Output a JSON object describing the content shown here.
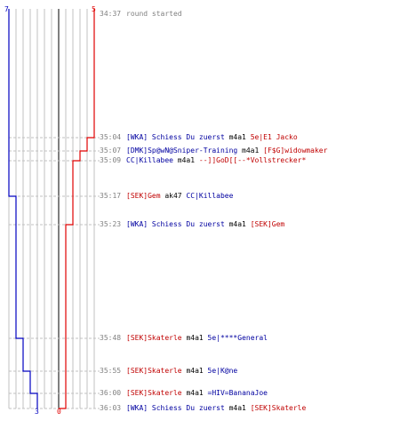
{
  "colors": {
    "blue": "#0000c0",
    "red": "#e00000",
    "grid": "#c0c0c0",
    "axis": "#808080"
  },
  "scores": {
    "blue_top": "7",
    "red_top": "5",
    "blue_bottom": "3",
    "red_bottom": "0"
  },
  "events": [
    {
      "time": "34:37",
      "parts": [
        {
          "text": "round started",
          "color": "gray"
        }
      ]
    },
    {
      "time": "35:04",
      "parts": [
        {
          "text": "[WKA] Schiess Du zuerst",
          "color": "blue"
        },
        {
          "text": " m4a1 ",
          "color": "black"
        },
        {
          "text": "5e|E1 Jacko",
          "color": "red"
        }
      ]
    },
    {
      "time": "35:07",
      "parts": [
        {
          "text": "[DMK]Sp@wN@Sniper-Training",
          "color": "blue"
        },
        {
          "text": " m4a1 ",
          "color": "black"
        },
        {
          "text": "[F$G]widowmaker",
          "color": "red"
        }
      ]
    },
    {
      "time": "35:09",
      "parts": [
        {
          "text": "CC|Killabee",
          "color": "blue"
        },
        {
          "text": " m4a1 ",
          "color": "black"
        },
        {
          "text": "--]]GoD[[--*Vollstrecker*",
          "color": "red"
        }
      ]
    },
    {
      "time": "35:17",
      "parts": [
        {
          "text": "[SEK]Gem",
          "color": "red"
        },
        {
          "text": " ak47 ",
          "color": "black"
        },
        {
          "text": "CC|Killabee",
          "color": "blue"
        }
      ]
    },
    {
      "time": "35:23",
      "parts": [
        {
          "text": "[WKA] Schiess Du zuerst",
          "color": "blue"
        },
        {
          "text": " m4a1 ",
          "color": "black"
        },
        {
          "text": "[SEK]Gem",
          "color": "red"
        }
      ]
    },
    {
      "time": "35:48",
      "parts": [
        {
          "text": "[SEK]Skaterle",
          "color": "red"
        },
        {
          "text": " m4a1 ",
          "color": "black"
        },
        {
          "text": "5e|****General",
          "color": "blue"
        }
      ]
    },
    {
      "time": "35:55",
      "parts": [
        {
          "text": "[SEK]Skaterle",
          "color": "red"
        },
        {
          "text": " m4a1 ",
          "color": "black"
        },
        {
          "text": "5e|K@ne",
          "color": "blue"
        }
      ]
    },
    {
      "time": "36:00",
      "parts": [
        {
          "text": "[SEK]Skaterle",
          "color": "red"
        },
        {
          "text": " m4a1 ",
          "color": "black"
        },
        {
          "text": "=HIV=BananaJoe",
          "color": "blue"
        }
      ]
    },
    {
      "time": "36:03",
      "parts": [
        {
          "text": "[WKA] Schiess Du zuerst",
          "color": "blue"
        },
        {
          "text": " m4a1 ",
          "color": "black"
        },
        {
          "text": "[SEK]Skaterle",
          "color": "red"
        }
      ]
    }
  ]
}
